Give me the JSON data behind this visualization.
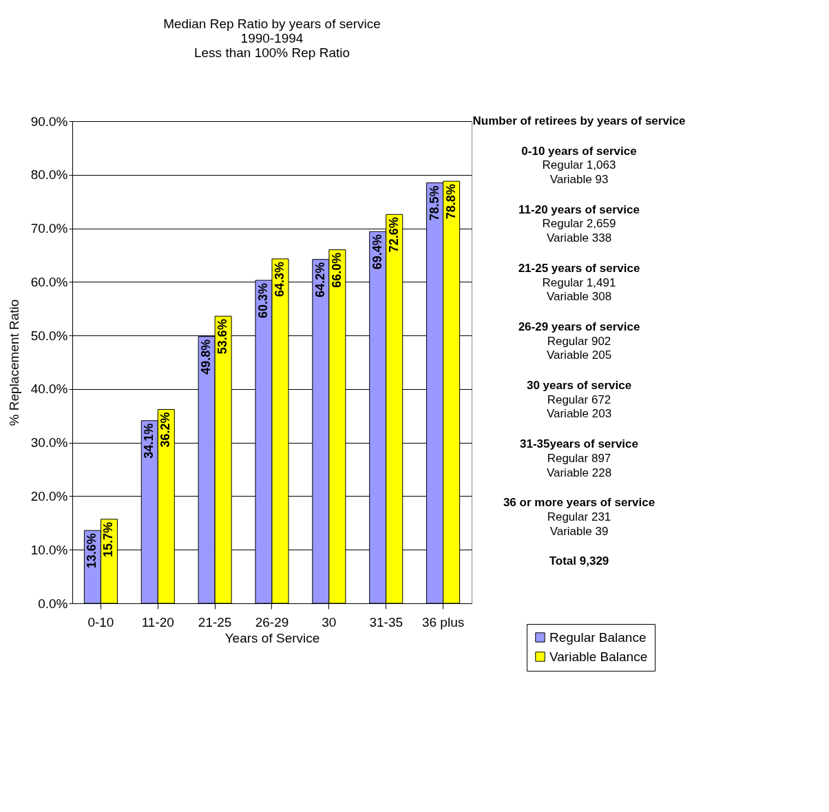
{
  "chart_data": {
    "type": "bar",
    "title": [
      "Median Rep Ratio by years of service",
      "1990-1994",
      "Less than 100% Rep Ratio"
    ],
    "xlabel": "Years of Service",
    "ylabel": "% Replacement Ratio",
    "categories": [
      "0-10",
      "11-20",
      "21-25",
      "26-29",
      "30",
      "31-35",
      "36 plus"
    ],
    "series": [
      {
        "name": "Regular Balance",
        "color": "#9999ff",
        "values": [
          13.6,
          34.1,
          49.8,
          60.3,
          64.2,
          69.4,
          78.5
        ],
        "value_labels": [
          "13.6%",
          "34.1%",
          "49.8%",
          "60.3%",
          "64.2%",
          "69.4%",
          "78.5%"
        ]
      },
      {
        "name": "Variable Balance",
        "color": "#ffff00",
        "values": [
          15.7,
          36.2,
          53.6,
          64.3,
          66.0,
          72.6,
          78.8
        ],
        "value_labels": [
          "15.7%",
          "36.2%",
          "53.6%",
          "64.3%",
          "66.0%",
          "72.6%",
          "78.8%"
        ]
      }
    ],
    "ylim": [
      0,
      90
    ],
    "yticks": [
      {
        "value": 0,
        "label": "0.0%"
      },
      {
        "value": 10,
        "label": "10.0%"
      },
      {
        "value": 20,
        "label": "20.0%"
      },
      {
        "value": 30,
        "label": "30.0%"
      },
      {
        "value": 40,
        "label": "40.0%"
      },
      {
        "value": 50,
        "label": "50.0%"
      },
      {
        "value": 60,
        "label": "60.0%"
      },
      {
        "value": 70,
        "label": "70.0%"
      },
      {
        "value": 80,
        "label": "80.0%"
      },
      {
        "value": 90,
        "label": "90.0%"
      }
    ],
    "grid": "y",
    "legend": "bottom right",
    "annotations": [
      "Number of retirees by years of service",
      "0-10 years of service",
      "Regular  1,063",
      "Variable   93",
      "11-20 years of service",
      "Regular   2,659",
      "Variable   338",
      "21-25 years of service",
      "Regular   1,491",
      "Variable   308",
      "26-29 years of service",
      "Regular   902",
      "Variable   205",
      "30 years of service",
      "Regular 672",
      "Variable   203",
      "31-35years of service",
      "Regular 897",
      "Variable  228",
      "36 or more years of service",
      "Regular 231",
      "Variable  39",
      "Total  9,329"
    ]
  }
}
